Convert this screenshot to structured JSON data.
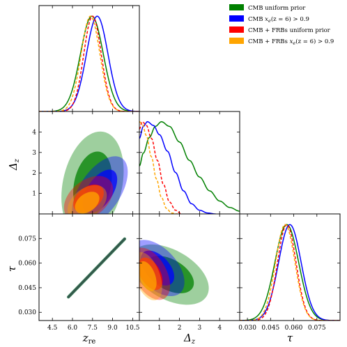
{
  "chart_data": {
    "type": "corner",
    "parameters": [
      {
        "key": "zre",
        "label": "z",
        "sub": "re",
        "range": [
          3.5,
          11.0
        ],
        "ticks": [
          4.5,
          6.0,
          7.5,
          9.0,
          10.5
        ],
        "tick_labels": [
          "4.5",
          "6.0",
          "7.5",
          "9.0",
          "10.5"
        ]
      },
      {
        "key": "dz",
        "label": "Δ",
        "sub": "z",
        "range": [
          0.0,
          5.0
        ],
        "ticks": [
          1,
          2,
          3,
          4
        ],
        "tick_labels": [
          "1",
          "2",
          "3",
          "4"
        ]
      },
      {
        "key": "tau",
        "label": "τ",
        "sub": "",
        "range": [
          0.025,
          0.09
        ],
        "ticks": [
          0.03,
          0.045,
          0.06,
          0.075
        ],
        "tick_labels": [
          "0.030",
          "0.045",
          "0.060",
          "0.075"
        ]
      }
    ],
    "legend": {
      "placement": "top-right",
      "entries": [
        {
          "label": "CMB uniform prior",
          "color": "#008000"
        },
        {
          "label": "CMB x_e(z = 6) > 0.9",
          "color": "#0000ff"
        },
        {
          "label": "CMB + FRBs uniform prior",
          "color": "#ff0000"
        },
        {
          "label": "CMB + FRBs x_e(z = 6) > 0.9",
          "color": "#ffa500"
        }
      ]
    },
    "series": [
      {
        "name": "CMB uniform prior",
        "color": "#008000",
        "dash": "solid",
        "zre": {
          "mean": 7.45,
          "sd": 0.85
        },
        "dz_curve": [
          [
            0.0,
            0.52
          ],
          [
            0.2,
            0.66
          ],
          [
            0.5,
            0.83
          ],
          [
            0.8,
            0.95
          ],
          [
            1.1,
            1.0
          ],
          [
            1.5,
            0.95
          ],
          [
            2.0,
            0.78
          ],
          [
            2.5,
            0.58
          ],
          [
            3.0,
            0.4
          ],
          [
            3.5,
            0.25
          ],
          [
            4.0,
            0.14
          ],
          [
            4.5,
            0.07
          ],
          [
            5.0,
            0.03
          ]
        ],
        "tau": {
          "mean": 0.0555,
          "sd": 0.0077
        },
        "dz_zre": {
          "mean_x": 7.5,
          "mean_y": 1.45,
          "sx": 0.95,
          "sy": 1.05,
          "rho": 0.25
        },
        "tau_dz": {
          "mean_x": 1.5,
          "mean_y": 0.053,
          "sx": 0.8,
          "sy": 0.0075,
          "rho": -0.45
        }
      },
      {
        "name": "CMB x_e(z = 6) > 0.9",
        "color": "#0000ff",
        "dash": "solid",
        "zre": {
          "mean": 7.85,
          "sd": 0.8
        },
        "dz_curve": [
          [
            0.0,
            0.82
          ],
          [
            0.2,
            0.95
          ],
          [
            0.4,
            1.0
          ],
          [
            0.7,
            0.96
          ],
          [
            1.0,
            0.86
          ],
          [
            1.4,
            0.68
          ],
          [
            1.8,
            0.45
          ],
          [
            2.2,
            0.25
          ],
          [
            2.6,
            0.11
          ],
          [
            3.0,
            0.04
          ],
          [
            3.4,
            0.01
          ],
          [
            3.8,
            0.0
          ]
        ],
        "tau": {
          "mean": 0.0575,
          "sd": 0.0073
        },
        "dz_zre": {
          "mean_x": 8.05,
          "mean_y": 1.1,
          "sx": 0.85,
          "sy": 0.7,
          "rho": 0.55
        },
        "tau_dz": {
          "mean_x": 0.9,
          "mean_y": 0.057,
          "sx": 0.55,
          "sy": 0.007,
          "rho": -0.5
        }
      },
      {
        "name": "CMB + FRBs uniform prior",
        "color": "#ff0000",
        "dash": "dashed",
        "zre": {
          "mean": 7.5,
          "sd": 0.65
        },
        "dz_curve": [
          [
            0.0,
            0.92
          ],
          [
            0.15,
            1.0
          ],
          [
            0.35,
            0.96
          ],
          [
            0.6,
            0.82
          ],
          [
            0.9,
            0.58
          ],
          [
            1.2,
            0.32
          ],
          [
            1.5,
            0.13
          ],
          [
            1.8,
            0.04
          ],
          [
            2.1,
            0.0
          ]
        ],
        "tau": {
          "mean": 0.0555,
          "sd": 0.006
        },
        "dz_zre": {
          "mean_x": 7.2,
          "mean_y": 0.75,
          "sx": 0.75,
          "sy": 0.45,
          "rho": 0.4
        },
        "tau_dz": {
          "mean_x": 0.55,
          "mean_y": 0.0535,
          "sx": 0.4,
          "sy": 0.0065,
          "rho": -0.45
        }
      },
      {
        "name": "CMB + FRBs x_e(z = 6) > 0.9",
        "color": "#ffa500",
        "dash": "dashed",
        "zre": {
          "mean": 7.35,
          "sd": 0.7
        },
        "dz_curve": [
          [
            0.0,
            1.0
          ],
          [
            0.15,
            0.97
          ],
          [
            0.35,
            0.85
          ],
          [
            0.6,
            0.62
          ],
          [
            0.85,
            0.38
          ],
          [
            1.1,
            0.18
          ],
          [
            1.35,
            0.06
          ],
          [
            1.6,
            0.01
          ],
          [
            1.9,
            0.0
          ]
        ],
        "tau": {
          "mean": 0.0545,
          "sd": 0.0063
        },
        "dz_zre": {
          "mean_x": 7.1,
          "mean_y": 0.55,
          "sx": 0.6,
          "sy": 0.35,
          "rho": 0.4
        },
        "tau_dz": {
          "mean_x": 0.4,
          "mean_y": 0.052,
          "sx": 0.3,
          "sy": 0.006,
          "rho": -0.45
        }
      }
    ],
    "tau_zre_relation": {
      "slope": 0.00843,
      "intercept": -0.0087,
      "zre_range": [
        5.7,
        9.9
      ]
    }
  }
}
